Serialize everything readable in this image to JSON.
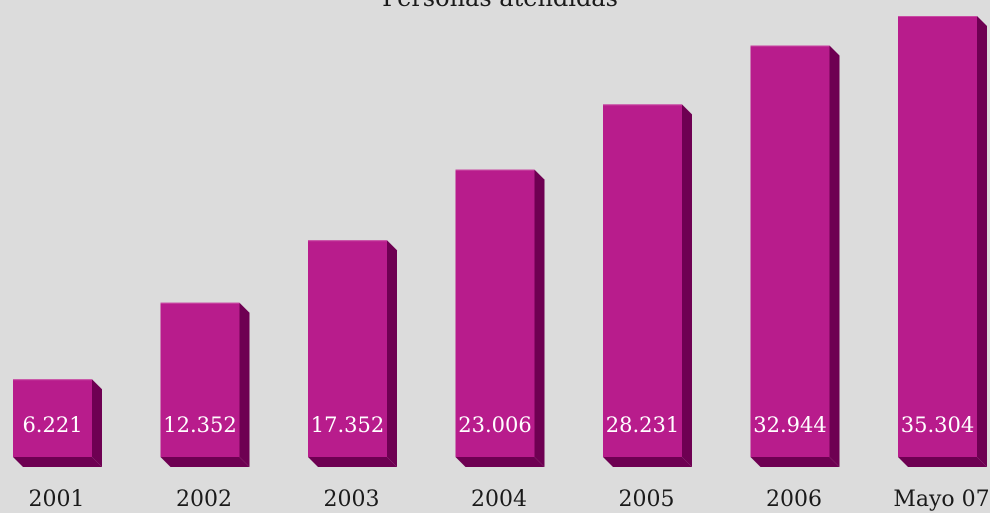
{
  "chart_data": {
    "type": "bar",
    "title": "Personas atendidas",
    "categories": [
      "2001",
      "2002",
      "2003",
      "2004",
      "2005",
      "2006",
      "Mayo 07"
    ],
    "values": [
      6221,
      12352,
      17352,
      23006,
      28231,
      32944,
      35304
    ],
    "value_labels": [
      "6.221",
      "12.352",
      "17.352",
      "23.006",
      "28.231",
      "32.944",
      "35.304"
    ],
    "ylim": [
      0,
      38000
    ],
    "grid": false,
    "legend": "none",
    "colors": {
      "background": "#dcdcdc",
      "bar_front": "#b81c8c",
      "bar_side": "#6e0052",
      "bar_top": "#c94aa3",
      "text": "#1a1a1a",
      "label_text": "#ffffff"
    }
  }
}
